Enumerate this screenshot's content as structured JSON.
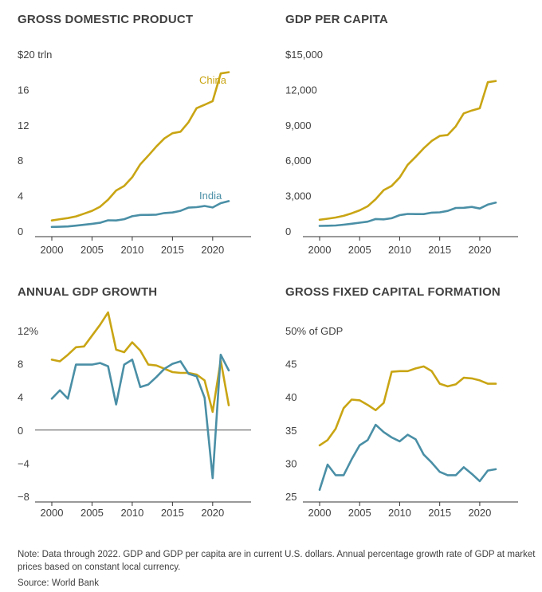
{
  "chart_data": [
    {
      "type": "line",
      "title": "GROSS DOMESTIC PRODUCT",
      "unit_label": "$20 trln",
      "y_ticks": [
        "0",
        "4",
        "8",
        "12",
        "16"
      ],
      "ylim": [
        0,
        20
      ],
      "x_ticks": [
        "2000",
        "2005",
        "2010",
        "2015",
        "2020"
      ],
      "xlim": [
        2000,
        2022
      ],
      "series": [
        {
          "name": "China",
          "color": "#c9a514",
          "x": [
            2000,
            2001,
            2002,
            2003,
            2004,
            2005,
            2006,
            2007,
            2008,
            2009,
            2010,
            2011,
            2012,
            2013,
            2014,
            2015,
            2016,
            2017,
            2018,
            2019,
            2020,
            2021,
            2022
          ],
          "values": [
            1.2,
            1.34,
            1.47,
            1.66,
            1.96,
            2.29,
            2.75,
            3.55,
            4.59,
            5.1,
            6.09,
            7.55,
            8.53,
            9.57,
            10.48,
            11.06,
            11.23,
            12.31,
            13.89,
            14.28,
            14.69,
            17.82,
            17.96
          ]
        },
        {
          "name": "India",
          "color": "#4a8fa6",
          "x": [
            2000,
            2001,
            2002,
            2003,
            2004,
            2005,
            2006,
            2007,
            2008,
            2009,
            2010,
            2011,
            2012,
            2013,
            2014,
            2015,
            2016,
            2017,
            2018,
            2019,
            2020,
            2021,
            2022
          ],
          "values": [
            0.47,
            0.49,
            0.52,
            0.61,
            0.71,
            0.82,
            0.94,
            1.22,
            1.2,
            1.34,
            1.68,
            1.82,
            1.83,
            1.86,
            2.04,
            2.1,
            2.29,
            2.65,
            2.7,
            2.84,
            2.67,
            3.15,
            3.39
          ]
        }
      ]
    },
    {
      "type": "line",
      "title": "GDP PER CAPITA",
      "unit_label": "$15,000",
      "y_ticks": [
        "0",
        "3,000",
        "6,000",
        "9,000",
        "12,000"
      ],
      "ylim": [
        0,
        15000
      ],
      "x_ticks": [
        "2000",
        "2005",
        "2010",
        "2015",
        "2020"
      ],
      "xlim": [
        2000,
        2022
      ],
      "series": [
        {
          "name": "China",
          "color": "#c9a514",
          "x": [
            2000,
            2001,
            2002,
            2003,
            2004,
            2005,
            2006,
            2007,
            2008,
            2009,
            2010,
            2011,
            2012,
            2013,
            2014,
            2015,
            2016,
            2017,
            2018,
            2019,
            2020,
            2021,
            2022
          ],
          "values": [
            960,
            1050,
            1150,
            1290,
            1510,
            1760,
            2100,
            2700,
            3470,
            3830,
            4550,
            5620,
            6300,
            7020,
            7640,
            8070,
            8150,
            8880,
            9980,
            10220,
            10410,
            12620,
            12720
          ]
        },
        {
          "name": "India",
          "color": "#4a8fa6",
          "x": [
            2000,
            2001,
            2002,
            2003,
            2004,
            2005,
            2006,
            2007,
            2008,
            2009,
            2010,
            2011,
            2012,
            2013,
            2014,
            2015,
            2016,
            2017,
            2018,
            2019,
            2020,
            2021,
            2022
          ],
          "values": [
            440,
            450,
            470,
            540,
            620,
            710,
            800,
            1020,
            990,
            1090,
            1350,
            1450,
            1440,
            1440,
            1560,
            1590,
            1710,
            1960,
            1970,
            2050,
            1910,
            2240,
            2410
          ]
        }
      ]
    },
    {
      "type": "line",
      "title": "ANNUAL GDP GROWTH",
      "unit_label": "12%",
      "y_ticks": [
        "−8",
        "−4",
        "0",
        "4",
        "8"
      ],
      "ylim": [
        -8,
        12
      ],
      "x_ticks": [
        "2000",
        "2005",
        "2010",
        "2015",
        "2020"
      ],
      "xlim": [
        2000,
        2022
      ],
      "series": [
        {
          "name": "China",
          "color": "#c9a514",
          "x": [
            2000,
            2001,
            2002,
            2003,
            2004,
            2005,
            2006,
            2007,
            2008,
            2009,
            2010,
            2011,
            2012,
            2013,
            2014,
            2015,
            2016,
            2017,
            2018,
            2019,
            2020,
            2021,
            2022
          ],
          "values": [
            8.5,
            8.3,
            9.1,
            10.0,
            10.1,
            11.4,
            12.7,
            14.2,
            9.7,
            9.4,
            10.6,
            9.6,
            7.9,
            7.8,
            7.4,
            7.0,
            6.9,
            6.9,
            6.7,
            6.0,
            2.2,
            8.4,
            3.0
          ]
        },
        {
          "name": "India",
          "color": "#4a8fa6",
          "x": [
            2000,
            2001,
            2002,
            2003,
            2004,
            2005,
            2006,
            2007,
            2008,
            2009,
            2010,
            2011,
            2012,
            2013,
            2014,
            2015,
            2016,
            2017,
            2018,
            2019,
            2020,
            2021,
            2022
          ],
          "values": [
            3.8,
            4.8,
            3.8,
            7.9,
            7.9,
            7.9,
            8.1,
            7.7,
            3.1,
            7.9,
            8.5,
            5.2,
            5.5,
            6.4,
            7.4,
            8.0,
            8.3,
            6.8,
            6.5,
            3.9,
            -5.8,
            9.1,
            7.2
          ]
        }
      ]
    },
    {
      "type": "line",
      "title": "GROSS FIXED CAPITAL FORMATION",
      "unit_label": "50% of GDP",
      "y_ticks": [
        "25",
        "30",
        "35",
        "40",
        "45"
      ],
      "ylim": [
        25,
        50
      ],
      "x_ticks": [
        "2000",
        "2005",
        "2010",
        "2015",
        "2020"
      ],
      "xlim": [
        2000,
        2022
      ],
      "series": [
        {
          "name": "China",
          "color": "#c9a514",
          "x": [
            2000,
            2001,
            2002,
            2003,
            2004,
            2005,
            2006,
            2007,
            2008,
            2009,
            2010,
            2011,
            2012,
            2013,
            2014,
            2015,
            2016,
            2017,
            2018,
            2019,
            2020,
            2021,
            2022
          ],
          "values": [
            32.7,
            33.5,
            35.2,
            38.3,
            39.6,
            39.5,
            38.8,
            38.0,
            39.1,
            43.8,
            43.9,
            43.9,
            44.3,
            44.6,
            43.9,
            42.0,
            41.6,
            41.9,
            42.9,
            42.8,
            42.5,
            42.0,
            42.0
          ]
        },
        {
          "name": "India",
          "color": "#4a8fa6",
          "x": [
            2000,
            2001,
            2002,
            2003,
            2004,
            2005,
            2006,
            2007,
            2008,
            2009,
            2010,
            2011,
            2012,
            2013,
            2014,
            2015,
            2016,
            2017,
            2018,
            2019,
            2020,
            2021,
            2022
          ],
          "values": [
            26.0,
            29.8,
            28.2,
            28.2,
            30.6,
            32.7,
            33.5,
            35.8,
            34.7,
            33.9,
            33.3,
            34.3,
            33.6,
            31.3,
            30.1,
            28.7,
            28.2,
            28.2,
            29.4,
            28.4,
            27.3,
            28.9,
            29.1
          ]
        }
      ]
    }
  ],
  "footer": {
    "note": "Note: Data through 2022. GDP and GDP per capita are in current U.S. dollars. Annual percentage growth rate of GDP at market prices based on constant local currency.",
    "source": "Source: World Bank"
  }
}
